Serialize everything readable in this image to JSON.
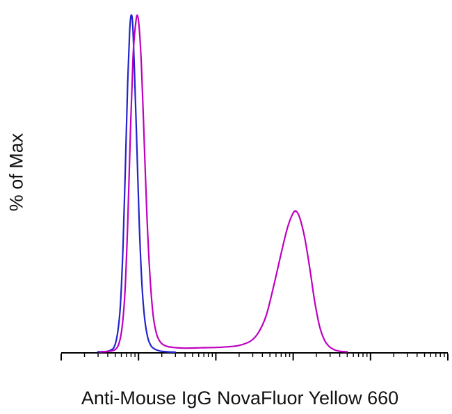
{
  "chart_data": {
    "type": "line",
    "title": "",
    "xlabel": "Anti-Mouse IgG NovaFluor Yellow 660",
    "ylabel": "% of Max",
    "x_scale": "log",
    "x_decades": 5,
    "ylim": [
      0,
      100
    ],
    "grid": false,
    "legend": "none",
    "axis_color": "#000000",
    "series": [
      {
        "name": "blue-histogram",
        "color": "#2323cc",
        "points": [
          [
            0.095,
            0.3
          ],
          [
            0.115,
            0.4
          ],
          [
            0.128,
            0.8
          ],
          [
            0.138,
            2
          ],
          [
            0.146,
            6
          ],
          [
            0.153,
            14
          ],
          [
            0.16,
            32
          ],
          [
            0.166,
            55
          ],
          [
            0.172,
            80
          ],
          [
            0.177,
            95
          ],
          [
            0.181,
            100
          ],
          [
            0.185,
            97
          ],
          [
            0.19,
            82
          ],
          [
            0.196,
            60
          ],
          [
            0.202,
            38
          ],
          [
            0.209,
            20
          ],
          [
            0.216,
            10
          ],
          [
            0.224,
            4.5
          ],
          [
            0.233,
            2
          ],
          [
            0.244,
            1
          ],
          [
            0.258,
            0.5
          ],
          [
            0.275,
            0.3
          ],
          [
            0.295,
            0.2
          ]
        ]
      },
      {
        "name": "magenta-histogram",
        "color": "#bf00bf",
        "points": [
          [
            0.1,
            0.3
          ],
          [
            0.125,
            0.5
          ],
          [
            0.14,
            1
          ],
          [
            0.15,
            3
          ],
          [
            0.158,
            8
          ],
          [
            0.165,
            18
          ],
          [
            0.172,
            38
          ],
          [
            0.179,
            65
          ],
          [
            0.186,
            88
          ],
          [
            0.192,
            97
          ],
          [
            0.197,
            100
          ],
          [
            0.202,
            96
          ],
          [
            0.208,
            84
          ],
          [
            0.215,
            62
          ],
          [
            0.222,
            40
          ],
          [
            0.23,
            22
          ],
          [
            0.238,
            11
          ],
          [
            0.247,
            5.5
          ],
          [
            0.258,
            3
          ],
          [
            0.272,
            2
          ],
          [
            0.29,
            1.6
          ],
          [
            0.32,
            1.4
          ],
          [
            0.36,
            1.5
          ],
          [
            0.4,
            1.6
          ],
          [
            0.43,
            1.8
          ],
          [
            0.46,
            2.2
          ],
          [
            0.49,
            3.5
          ],
          [
            0.51,
            6
          ],
          [
            0.53,
            11
          ],
          [
            0.55,
            20
          ],
          [
            0.57,
            30
          ],
          [
            0.585,
            37
          ],
          [
            0.598,
            41
          ],
          [
            0.607,
            42
          ],
          [
            0.617,
            40
          ],
          [
            0.63,
            34
          ],
          [
            0.643,
            25
          ],
          [
            0.656,
            15
          ],
          [
            0.668,
            8
          ],
          [
            0.68,
            4
          ],
          [
            0.692,
            2
          ],
          [
            0.705,
            1
          ],
          [
            0.72,
            0.5
          ],
          [
            0.74,
            0.3
          ]
        ]
      }
    ]
  }
}
